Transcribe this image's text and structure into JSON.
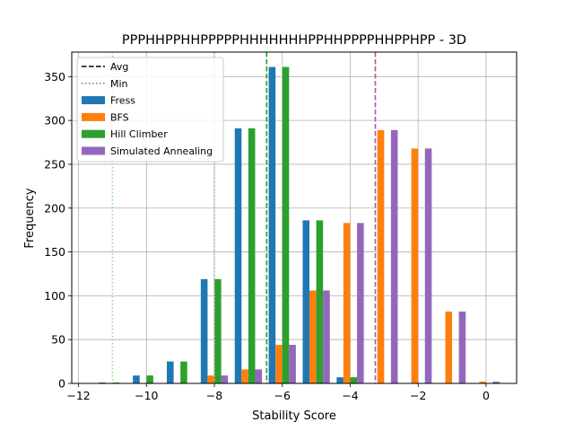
{
  "chart_data": {
    "type": "bar",
    "title": "PPPHHPPHHPPPPPHHHHHHHPPHHPPPPHHPPHPP - 3D",
    "xlabel": "Stability Score",
    "ylabel": "Frequency",
    "xlim": [
      -12.2,
      0.9
    ],
    "ylim": [
      0,
      378
    ],
    "xticks": [
      -12,
      -10,
      -8,
      -6,
      -4,
      -2,
      0
    ],
    "xtick_labels": [
      "−12",
      "−10",
      "−8",
      "−6",
      "−4",
      "−2",
      "0"
    ],
    "yticks": [
      0,
      50,
      100,
      150,
      200,
      250,
      300,
      350
    ],
    "ytick_labels": [
      "0",
      "50",
      "100",
      "150",
      "200",
      "250",
      "300",
      "350"
    ],
    "grid": true,
    "legend_position": "upper-left",
    "legend": [
      {
        "label": "Avg",
        "kind": "dashed-line",
        "color": "#000000"
      },
      {
        "label": "Min",
        "kind": "dotted-line",
        "color": "#808080"
      },
      {
        "label": "Fress",
        "kind": "patch",
        "color": "#1f77b4"
      },
      {
        "label": "BFS",
        "kind": "patch",
        "color": "#ff7f0e"
      },
      {
        "label": "Hill Climber",
        "kind": "patch",
        "color": "#2ca02c"
      },
      {
        "label": "Simulated Annealing",
        "kind": "patch",
        "color": "#9467bd"
      }
    ],
    "series": [
      {
        "name": "Fress",
        "color": "#1f77b4",
        "bins": [
          {
            "x": -11.4,
            "width": 0.2,
            "value": 1
          },
          {
            "x": -10.4,
            "width": 0.2,
            "value": 9
          },
          {
            "x": -9.4,
            "width": 0.2,
            "value": 25
          },
          {
            "x": -8.4,
            "width": 0.2,
            "value": 119
          },
          {
            "x": -7.4,
            "width": 0.2,
            "value": 291
          },
          {
            "x": -6.4,
            "width": 0.2,
            "value": 361
          },
          {
            "x": -5.4,
            "width": 0.2,
            "value": 186
          },
          {
            "x": -4.4,
            "width": 0.2,
            "value": 7
          }
        ]
      },
      {
        "name": "BFS",
        "color": "#ff7f0e",
        "bins": [
          {
            "x": -8.2,
            "width": 0.2,
            "value": 9
          },
          {
            "x": -7.2,
            "width": 0.2,
            "value": 16
          },
          {
            "x": -6.2,
            "width": 0.2,
            "value": 44
          },
          {
            "x": -5.2,
            "width": 0.2,
            "value": 106
          },
          {
            "x": -4.2,
            "width": 0.2,
            "value": 183
          },
          {
            "x": -3.2,
            "width": 0.2,
            "value": 289
          },
          {
            "x": -2.2,
            "width": 0.2,
            "value": 268
          },
          {
            "x": -1.2,
            "width": 0.2,
            "value": 82
          },
          {
            "x": -0.2,
            "width": 0.2,
            "value": 2
          }
        ]
      },
      {
        "name": "Hill Climber",
        "color": "#2ca02c",
        "bins": [
          {
            "x": -11.0,
            "width": 0.2,
            "value": 1
          },
          {
            "x": -10.0,
            "width": 0.2,
            "value": 9
          },
          {
            "x": -9.0,
            "width": 0.2,
            "value": 25
          },
          {
            "x": -8.0,
            "width": 0.2,
            "value": 119
          },
          {
            "x": -7.0,
            "width": 0.2,
            "value": 291
          },
          {
            "x": -6.0,
            "width": 0.2,
            "value": 361
          },
          {
            "x": -5.0,
            "width": 0.2,
            "value": 186
          },
          {
            "x": -4.0,
            "width": 0.2,
            "value": 7
          }
        ]
      },
      {
        "name": "Simulated Annealing",
        "color": "#9467bd",
        "bins": [
          {
            "x": -7.8,
            "width": 0.2,
            "value": 9
          },
          {
            "x": -6.8,
            "width": 0.2,
            "value": 16
          },
          {
            "x": -5.8,
            "width": 0.2,
            "value": 44
          },
          {
            "x": -4.8,
            "width": 0.2,
            "value": 106
          },
          {
            "x": -3.8,
            "width": 0.2,
            "value": 183
          },
          {
            "x": -2.8,
            "width": 0.2,
            "value": 289
          },
          {
            "x": -1.8,
            "width": 0.2,
            "value": 268
          },
          {
            "x": -0.8,
            "width": 0.2,
            "value": 82
          },
          {
            "x": 0.2,
            "width": 0.2,
            "value": 2
          }
        ]
      }
    ],
    "reference_lines": [
      {
        "series": "Fress",
        "stat": "Avg",
        "x": -6.46,
        "style": "dashed",
        "color": "#1f77b4"
      },
      {
        "series": "Hill Climber",
        "stat": "Avg",
        "x": -6.46,
        "style": "dashed",
        "color": "#2ca02c"
      },
      {
        "series": "BFS",
        "stat": "Avg",
        "x": -3.26,
        "style": "dashed",
        "color": "#ff7f0e"
      },
      {
        "series": "Simulated Annealing",
        "stat": "Avg",
        "x": -3.26,
        "style": "dashed",
        "color": "#9467bd"
      },
      {
        "series": "Fress",
        "stat": "Min",
        "x": -11.0,
        "style": "dotted",
        "color": "#aec7e8"
      },
      {
        "series": "Hill Climber",
        "stat": "Min",
        "x": -11.0,
        "style": "dotted",
        "color": "#98df8a"
      },
      {
        "series": "BFS",
        "stat": "Min",
        "x": -8.0,
        "style": "dotted",
        "color": "#ffbb78"
      },
      {
        "series": "Simulated Annealing",
        "stat": "Min",
        "x": -8.0,
        "style": "dotted",
        "color": "#c5b0d5"
      }
    ]
  }
}
